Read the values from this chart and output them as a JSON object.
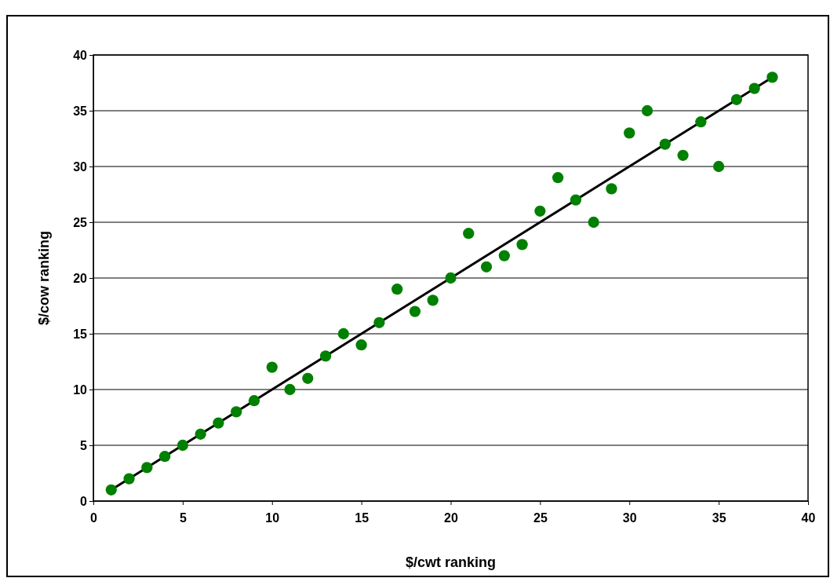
{
  "chart_data": {
    "type": "scatter",
    "xlabel": "$/cwt ranking",
    "ylabel": "$/cow ranking",
    "xlim": [
      0,
      40
    ],
    "ylim": [
      0,
      40
    ],
    "xticks": [
      0,
      5,
      10,
      15,
      20,
      25,
      30,
      35,
      40
    ],
    "yticks": [
      0,
      5,
      10,
      15,
      20,
      25,
      30,
      35,
      40
    ],
    "grid": "y",
    "marker": "circle",
    "x": [
      1,
      2,
      3,
      4,
      5,
      6,
      7,
      8,
      9,
      10,
      11,
      12,
      13,
      14,
      15,
      16,
      17,
      18,
      19,
      20,
      21,
      22,
      23,
      24,
      25,
      26,
      27,
      28,
      29,
      30,
      31,
      32,
      33,
      34,
      35,
      36,
      37,
      38
    ],
    "series": [
      {
        "type": "line",
        "color": "#000000",
        "x": [
          1,
          38
        ],
        "values": [
          1,
          38
        ],
        "line_style": "solid",
        "marker": "none"
      },
      {
        "color": "#008000",
        "values": [
          1,
          2,
          3,
          4,
          5,
          6,
          7,
          8,
          9,
          12,
          10,
          11,
          13,
          15,
          14,
          16,
          19,
          17,
          18,
          20,
          24,
          21,
          22,
          23,
          26,
          29,
          27,
          25,
          28,
          33,
          35,
          32,
          31,
          34,
          30,
          36,
          37,
          38
        ]
      }
    ]
  }
}
